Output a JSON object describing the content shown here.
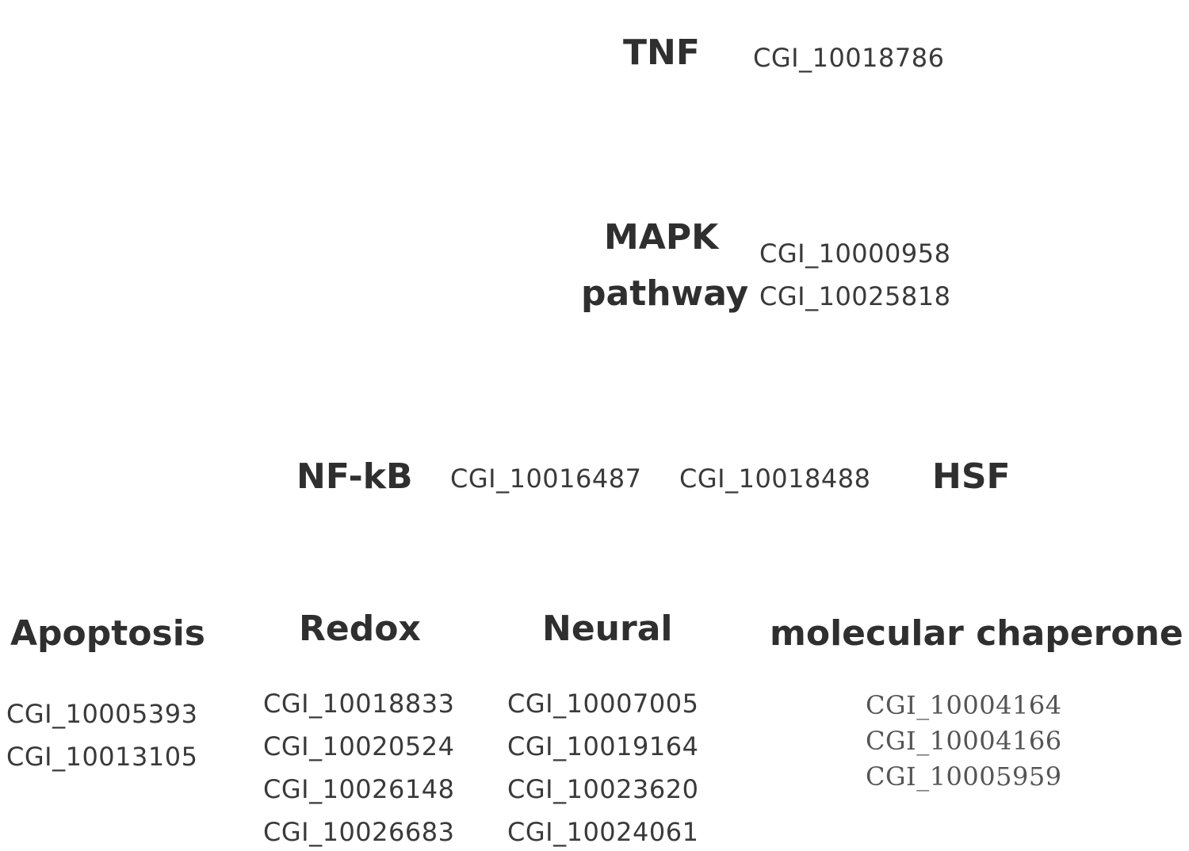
{
  "tnf": {
    "label": "TNF",
    "genes": [
      "CGI_10018786"
    ]
  },
  "mapk": {
    "label_line1": "MAPK",
    "label_line2": "pathway",
    "genes": [
      "CGI_10000958",
      "CGI_10025818"
    ]
  },
  "middle_row": {
    "nfkb_label": "NF-kB",
    "nfkb_gene": "CGI_10016487",
    "hsf_gene": "CGI_10018488",
    "hsf_label": "HSF"
  },
  "categories": [
    {
      "label": "Apoptosis",
      "genes": [
        "CGI_10005393",
        "CGI_10013105"
      ]
    },
    {
      "label": "Redox",
      "genes": [
        "CGI_10018833",
        "CGI_10020524",
        "CGI_10026148",
        "CGI_10026683"
      ]
    },
    {
      "label": "Neural",
      "genes": [
        "CGI_10007005",
        "CGI_10019164",
        "CGI_10023620",
        "CGI_10024061"
      ]
    },
    {
      "label": "molecular chaperone",
      "genes": [
        "CGI_10004164",
        "CGI_10004166",
        "CGI_10005959"
      ]
    }
  ]
}
